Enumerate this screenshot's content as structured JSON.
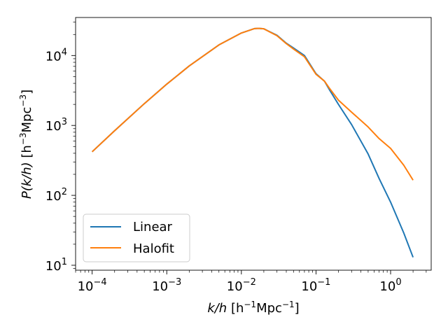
{
  "chart_data": {
    "type": "line",
    "x_scale": "log",
    "y_scale": "log",
    "xlim": [
      6e-05,
      3.5
    ],
    "ylim": [
      8.5,
      35000
    ],
    "xlabel": {
      "base": "k/h",
      "unit_open": " [h",
      "sup1": "−1",
      "unit_mid": "Mpc",
      "sup2": "−1",
      "unit_close": "]"
    },
    "ylabel": {
      "base": "P(k/h)",
      "unit_open": " [h",
      "sup1": "−3",
      "unit_mid": "Mpc",
      "sup2": "−3",
      "unit_close": "]"
    },
    "x_ticks": [
      {
        "value": 0.0001,
        "base": "10",
        "exp": "−4"
      },
      {
        "value": 0.001,
        "base": "10",
        "exp": "−3"
      },
      {
        "value": 0.01,
        "base": "10",
        "exp": "−2"
      },
      {
        "value": 0.1,
        "base": "10",
        "exp": "−1"
      },
      {
        "value": 1,
        "base": "10",
        "exp": "0"
      }
    ],
    "y_ticks": [
      {
        "value": 10,
        "base": "10",
        "exp": "1"
      },
      {
        "value": 100,
        "base": "10",
        "exp": "2"
      },
      {
        "value": 1000,
        "base": "10",
        "exp": "3"
      },
      {
        "value": 10000,
        "base": "10",
        "exp": "4"
      }
    ],
    "legend_position": "lower-left",
    "series": [
      {
        "name": "Linear",
        "color": "#1f77b4",
        "points": [
          [
            0.0001,
            420
          ],
          [
            0.0002,
            840
          ],
          [
            0.0005,
            2050
          ],
          [
            0.001,
            3900
          ],
          [
            0.002,
            7100
          ],
          [
            0.005,
            14200
          ],
          [
            0.01,
            21000
          ],
          [
            0.015,
            24300
          ],
          [
            0.017,
            24500
          ],
          [
            0.02,
            24100
          ],
          [
            0.03,
            19500
          ],
          [
            0.04,
            15000
          ],
          [
            0.05,
            12800
          ],
          [
            0.07,
            10000
          ],
          [
            0.1,
            5500
          ],
          [
            0.13,
            4300
          ],
          [
            0.15,
            3300
          ],
          [
            0.2,
            2000
          ],
          [
            0.3,
            1030
          ],
          [
            0.5,
            390
          ],
          [
            0.7,
            175
          ],
          [
            1.0,
            80
          ],
          [
            1.5,
            29
          ],
          [
            2.0,
            13
          ]
        ]
      },
      {
        "name": "Halofit",
        "color": "#ff7f0e",
        "points": [
          [
            0.0001,
            420
          ],
          [
            0.0002,
            840
          ],
          [
            0.0005,
            2050
          ],
          [
            0.001,
            3900
          ],
          [
            0.002,
            7100
          ],
          [
            0.005,
            14200
          ],
          [
            0.01,
            21000
          ],
          [
            0.015,
            24300
          ],
          [
            0.017,
            24500
          ],
          [
            0.02,
            24100
          ],
          [
            0.03,
            19200
          ],
          [
            0.04,
            14800
          ],
          [
            0.05,
            12400
          ],
          [
            0.07,
            9600
          ],
          [
            0.1,
            5400
          ],
          [
            0.13,
            4300
          ],
          [
            0.15,
            3450
          ],
          [
            0.2,
            2300
          ],
          [
            0.3,
            1550
          ],
          [
            0.5,
            950
          ],
          [
            0.7,
            650
          ],
          [
            1.0,
            470
          ],
          [
            1.5,
            270
          ],
          [
            2.0,
            165
          ]
        ]
      }
    ]
  }
}
